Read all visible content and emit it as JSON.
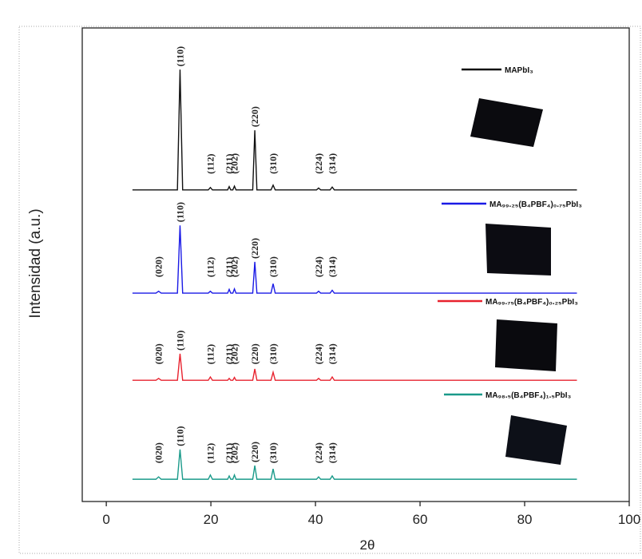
{
  "chart_data": {
    "type": "line",
    "xlabel": "2θ",
    "ylabel": "Intensidad (a.u.)",
    "xlim": [
      -4.6,
      100
    ],
    "xticks": [
      0,
      20,
      40,
      60,
      80,
      100
    ],
    "ylim": [
      0,
      100
    ],
    "x": [
      5,
      9.5,
      10,
      10.5,
      13.6,
      14.1,
      14.6,
      19.5,
      19.9,
      20.3,
      23.2,
      23.5,
      23.8,
      24.2,
      24.5,
      24.8,
      28,
      28.4,
      28.8,
      31.5,
      31.9,
      32.3,
      40.2,
      40.6,
      41,
      42.8,
      43.2,
      43.6,
      90
    ],
    "series": [
      {
        "name": "MAPbI₃",
        "color": "#111111",
        "values": [
          65.8,
          65.8,
          65.8,
          65.8,
          65.8,
          91.2,
          65.8,
          65.8,
          66.3,
          65.8,
          65.8,
          66.5,
          65.8,
          65.8,
          66.6,
          65.8,
          65.8,
          78.4,
          65.8,
          65.8,
          66.8,
          65.8,
          65.8,
          66.2,
          65.8,
          65.8,
          66.4,
          65.8,
          65.8
        ],
        "peak_labels": [
          {
            "label": "(110)",
            "x": 14.1
          },
          {
            "label": "(112)",
            "x": 19.9
          },
          {
            "label": "(211)",
            "x": 23.5
          },
          {
            "label": "(202)",
            "x": 24.5
          },
          {
            "label": "(220)",
            "x": 28.4
          },
          {
            "label": "(310)",
            "x": 31.9
          },
          {
            "label": "(224)",
            "x": 40.6
          },
          {
            "label": "(314)",
            "x": 43.2
          }
        ]
      },
      {
        "name": "MA₉₉.₂₅(B₄PBF₄)₀.₇₅PbI₃",
        "color": "#1a1ae6",
        "values": [
          44,
          44,
          44.4,
          44,
          44,
          58.3,
          44,
          44,
          44.4,
          44,
          44,
          44.8,
          44,
          44,
          44.9,
          44,
          44,
          50.6,
          44,
          44,
          46,
          44,
          44,
          44.4,
          44,
          44,
          44.6,
          44,
          44
        ],
        "peak_labels": [
          {
            "label": "(020)",
            "x": 10
          },
          {
            "label": "(110)",
            "x": 14.1
          },
          {
            "label": "(112)",
            "x": 19.9
          },
          {
            "label": "(211)",
            "x": 23.5
          },
          {
            "label": "(202)",
            "x": 24.5
          },
          {
            "label": "(220)",
            "x": 28.4
          },
          {
            "label": "(310)",
            "x": 31.9
          },
          {
            "label": "(224)",
            "x": 40.6
          },
          {
            "label": "(314)",
            "x": 43.2
          }
        ]
      },
      {
        "name": "MA₉₉.₇₅(B₄PBF₄)₀.₂₅PbI₃",
        "color": "#e8222e",
        "values": [
          25.6,
          25.6,
          26,
          25.6,
          25.6,
          31.2,
          25.6,
          25.6,
          26.3,
          25.6,
          25.6,
          26,
          25.6,
          25.6,
          26.2,
          25.6,
          25.6,
          28,
          25.6,
          25.6,
          27.3,
          25.6,
          25.6,
          26,
          25.6,
          25.6,
          26.3,
          25.6,
          25.6
        ],
        "peak_labels": [
          {
            "label": "(020)",
            "x": 10
          },
          {
            "label": "(110)",
            "x": 14.1
          },
          {
            "label": "(112)",
            "x": 19.9
          },
          {
            "label": "(211)",
            "x": 23.5
          },
          {
            "label": "(202)",
            "x": 24.5
          },
          {
            "label": "(220)",
            "x": 28.4
          },
          {
            "label": "(310)",
            "x": 31.9
          },
          {
            "label": "(224)",
            "x": 40.6
          },
          {
            "label": "(314)",
            "x": 43.2
          }
        ]
      },
      {
        "name": "MA₉₈.₅(B₄PBF₄)₁.₅PbI₃",
        "color": "#1a9a8a",
        "values": [
          4.7,
          4.7,
          5.2,
          4.7,
          4.7,
          11,
          4.7,
          4.7,
          5.6,
          4.7,
          4.7,
          5.4,
          4.7,
          4.7,
          5.6,
          4.7,
          4.7,
          7.6,
          4.7,
          4.7,
          6.9,
          4.7,
          4.7,
          5.2,
          4.7,
          4.7,
          5.4,
          4.7,
          4.7
        ],
        "peak_labels": [
          {
            "label": "(020)",
            "x": 10
          },
          {
            "label": "(110)",
            "x": 14.1
          },
          {
            "label": "(112)",
            "x": 19.9
          },
          {
            "label": "(211)",
            "x": 23.5
          },
          {
            "label": "(202)",
            "x": 24.5
          },
          {
            "label": "(220)",
            "x": 28.4
          },
          {
            "label": "(310)",
            "x": 31.9
          },
          {
            "label": "(224)",
            "x": 40.6
          },
          {
            "label": "(314)",
            "x": 43.2
          }
        ]
      }
    ]
  }
}
